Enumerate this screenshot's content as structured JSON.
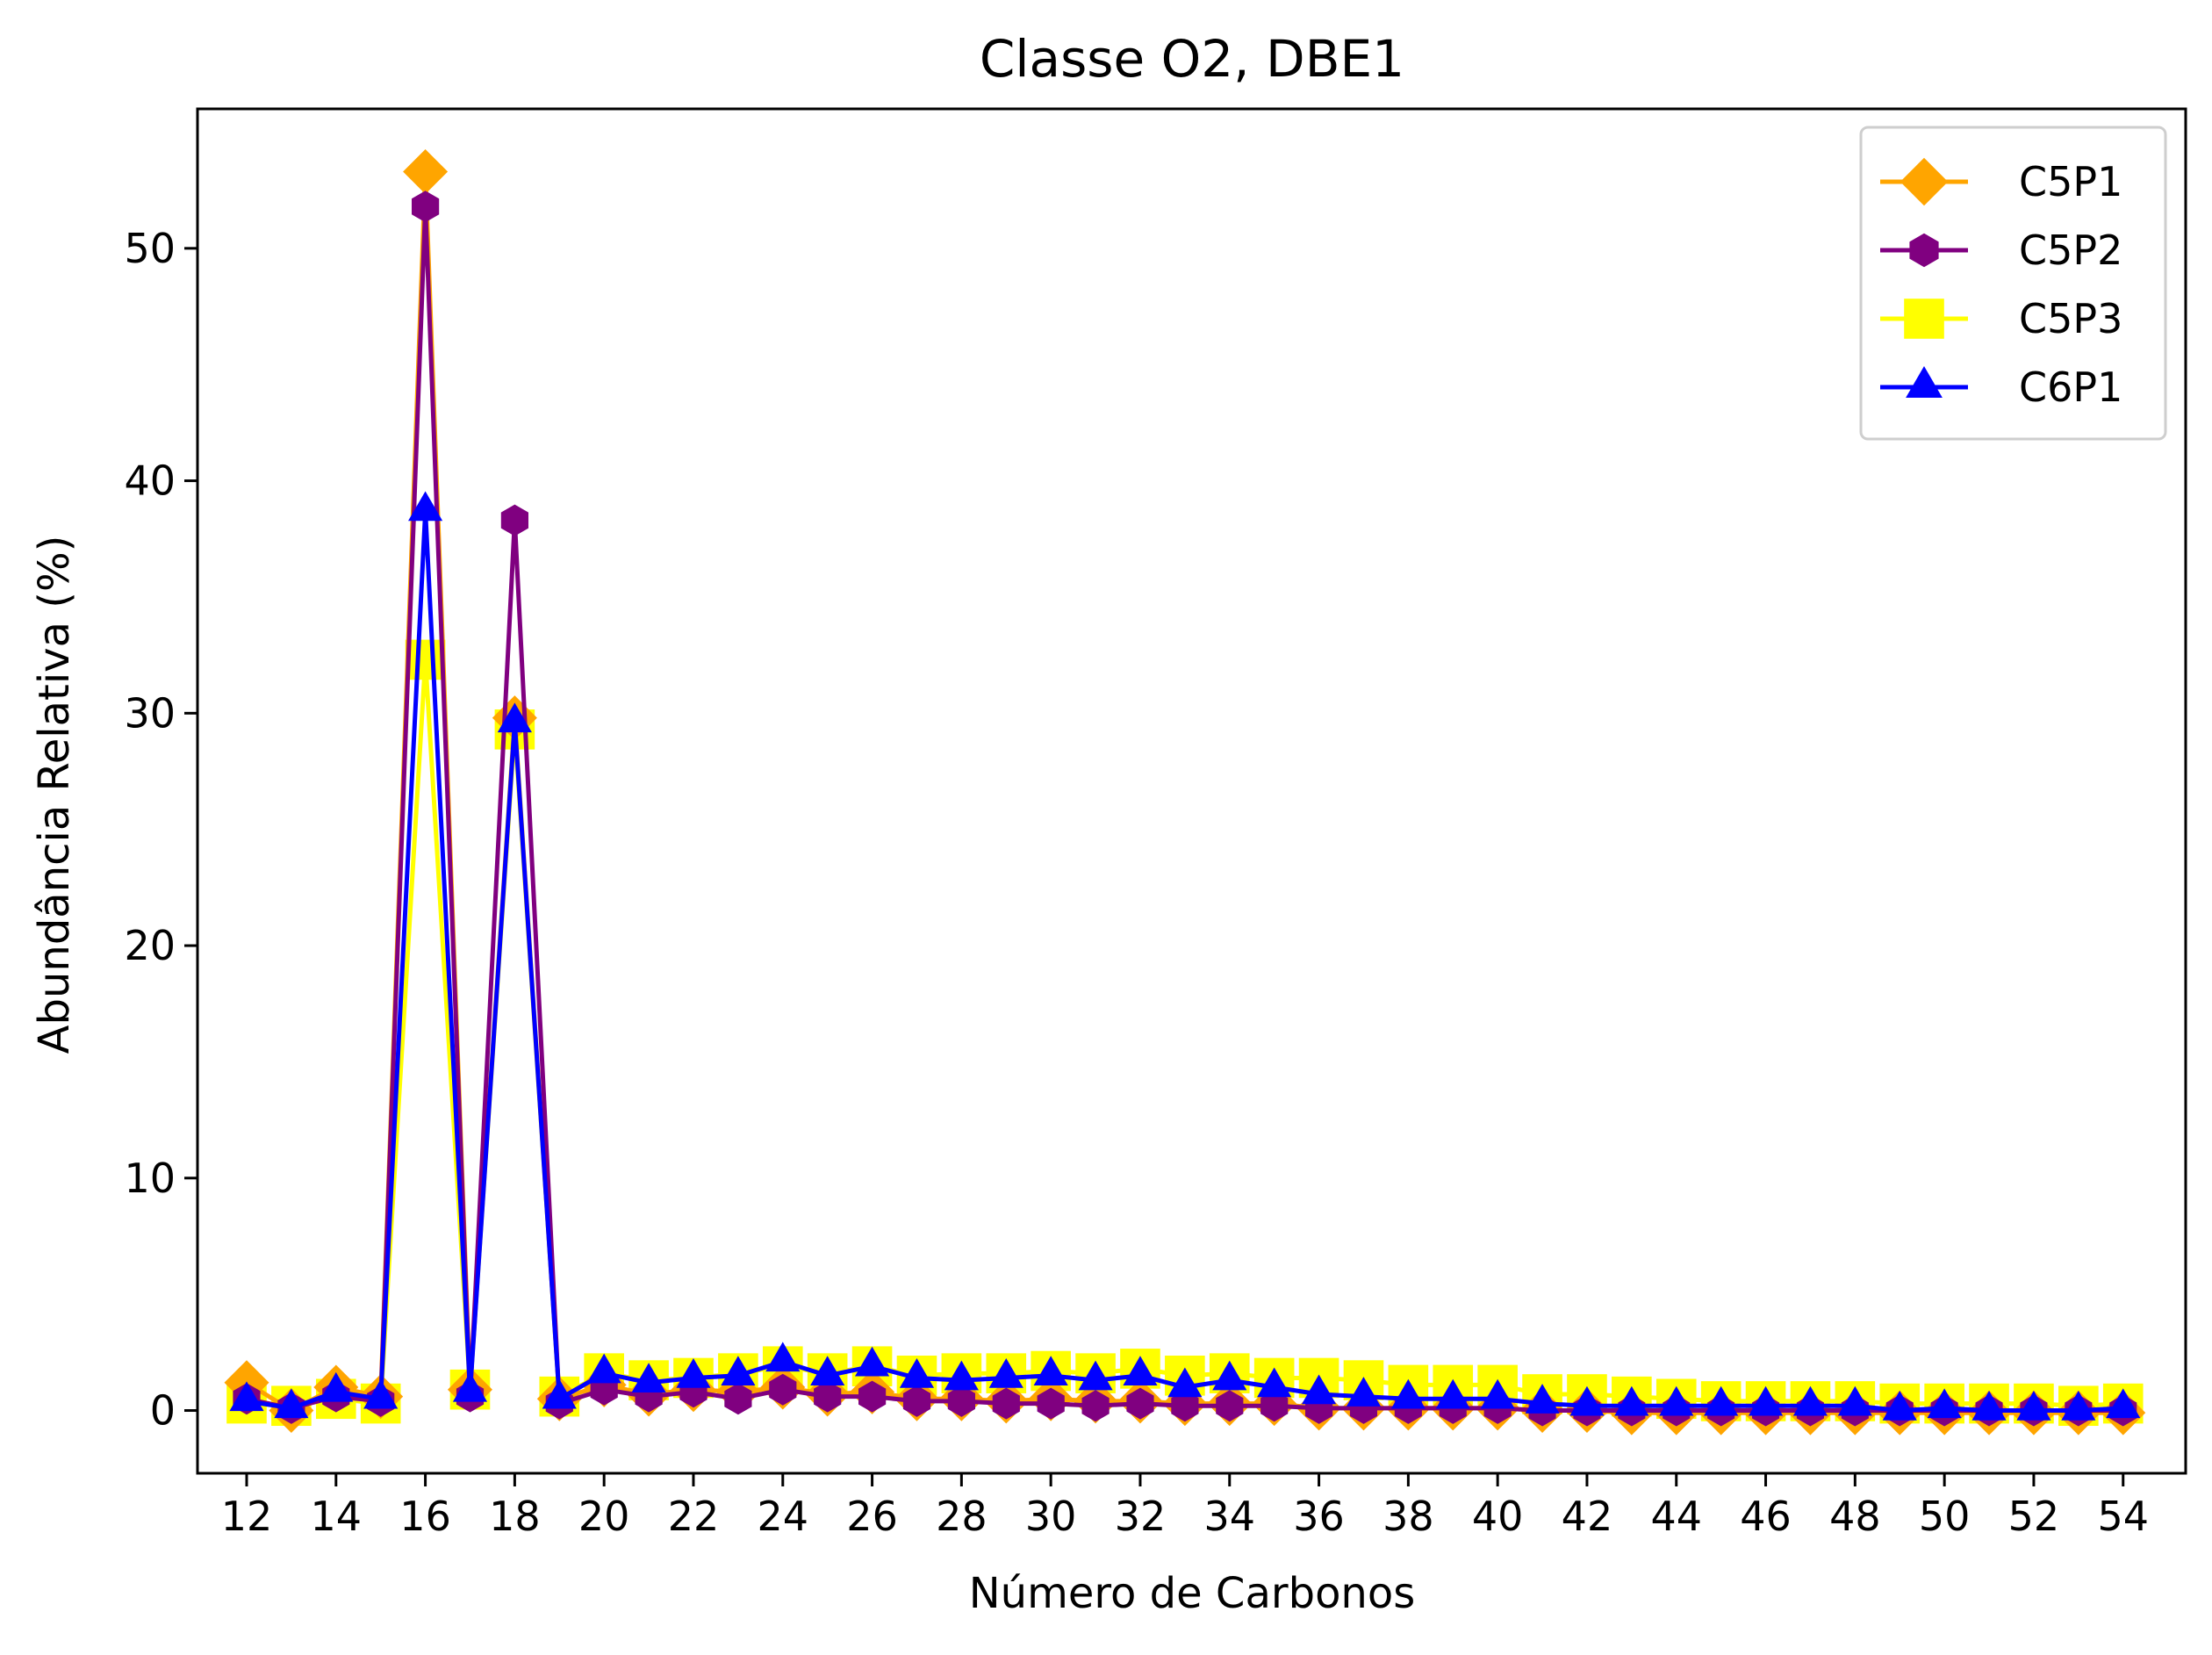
{
  "chart_data": {
    "type": "line",
    "title": "Classe O2, DBE1",
    "xlabel": "Número de Carbonos",
    "ylabel": "Abundância Relativa (%)",
    "xlim": [
      10.9,
      55.4
    ],
    "ylim": [
      -2.7,
      56.0
    ],
    "xticks": [
      12,
      14,
      16,
      18,
      20,
      22,
      24,
      26,
      28,
      30,
      32,
      34,
      36,
      38,
      40,
      42,
      44,
      46,
      48,
      50,
      52,
      54
    ],
    "yticks": [
      0,
      10,
      20,
      30,
      40,
      50
    ],
    "grid": false,
    "legend_position": "upper right",
    "x": [
      12,
      13,
      14,
      15,
      16,
      17,
      18,
      19,
      20,
      21,
      22,
      23,
      24,
      25,
      26,
      27,
      28,
      29,
      30,
      31,
      32,
      33,
      34,
      35,
      36,
      37,
      38,
      39,
      40,
      41,
      42,
      43,
      44,
      45,
      46,
      47,
      48,
      49,
      50,
      51,
      52,
      53,
      54
    ],
    "series": [
      {
        "name": "C5P1",
        "color": "#ffa500",
        "marker": "diamond",
        "values": [
          1.2,
          0.0,
          1.0,
          0.6,
          53.3,
          0.9,
          29.8,
          0.5,
          1.1,
          0.7,
          0.9,
          0.8,
          1.0,
          0.7,
          0.8,
          0.5,
          0.5,
          0.4,
          0.5,
          0.4,
          0.4,
          0.3,
          0.3,
          0.3,
          0.1,
          0.1,
          0.1,
          0.1,
          0.1,
          0.0,
          0.0,
          -0.1,
          -0.1,
          -0.1,
          -0.1,
          -0.1,
          -0.1,
          -0.1,
          -0.1,
          -0.1,
          -0.1,
          -0.1,
          -0.1
        ]
      },
      {
        "name": "C5P2",
        "color": "#800080",
        "marker": "hexagon",
        "values": [
          0.5,
          0.1,
          0.6,
          0.4,
          51.8,
          0.6,
          38.3,
          0.3,
          0.9,
          0.6,
          0.8,
          0.5,
          0.9,
          0.6,
          0.6,
          0.4,
          0.4,
          0.3,
          0.3,
          0.2,
          0.3,
          0.2,
          0.2,
          0.2,
          0.1,
          0.1,
          0.1,
          0.1,
          0.1,
          0.0,
          0.0,
          0.0,
          0.0,
          0.0,
          0.0,
          0.0,
          0.0,
          0.0,
          0.0,
          0.0,
          0.0,
          0.0,
          0.0
        ]
      },
      {
        "name": "C5P3",
        "color": "#ffff00",
        "marker": "square",
        "values": [
          0.3,
          0.2,
          0.5,
          0.3,
          32.3,
          0.9,
          29.3,
          0.6,
          1.6,
          1.3,
          1.4,
          1.6,
          1.9,
          1.6,
          1.9,
          1.5,
          1.6,
          1.6,
          1.7,
          1.6,
          1.8,
          1.5,
          1.6,
          1.4,
          1.4,
          1.3,
          1.1,
          1.1,
          1.1,
          0.7,
          0.7,
          0.6,
          0.5,
          0.4,
          0.4,
          0.4,
          0.4,
          0.3,
          0.3,
          0.3,
          0.3,
          0.2,
          0.3
        ]
      },
      {
        "name": "C6P1",
        "color": "#0000ff",
        "marker": "triangle-up",
        "values": [
          0.4,
          0.1,
          0.8,
          0.5,
          38.7,
          0.8,
          29.6,
          0.5,
          1.6,
          1.2,
          1.4,
          1.5,
          2.1,
          1.5,
          1.9,
          1.4,
          1.3,
          1.4,
          1.5,
          1.3,
          1.5,
          1.0,
          1.3,
          1.0,
          0.7,
          0.6,
          0.5,
          0.5,
          0.5,
          0.3,
          0.2,
          0.2,
          0.2,
          0.2,
          0.2,
          0.2,
          0.2,
          0.0,
          0.1,
          0.0,
          0.0,
          0.0,
          0.1
        ]
      }
    ]
  }
}
